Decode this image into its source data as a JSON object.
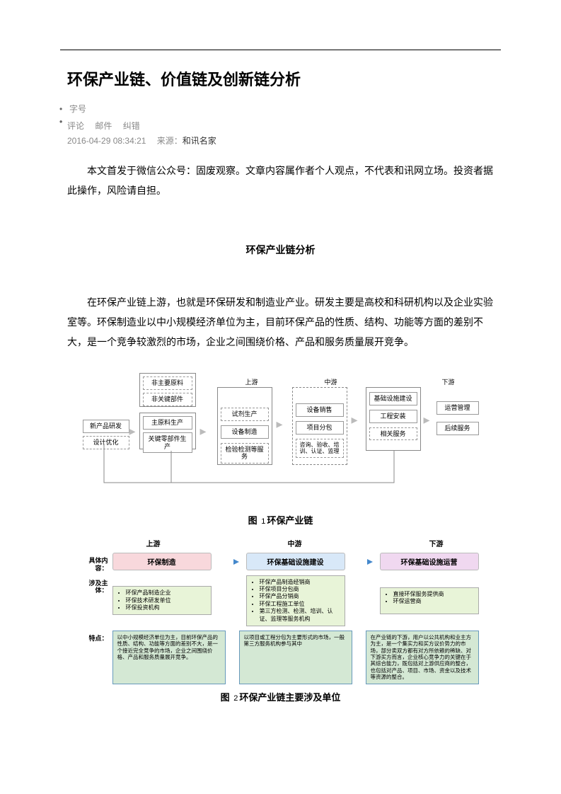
{
  "title": "环保产业链、价值链及创新链分析",
  "meta": {
    "font_label": "字号",
    "links": [
      "评论",
      "邮件",
      "纠错"
    ],
    "timestamp": "2016-04-29 08:34:21",
    "source_label": "来源：",
    "source": "和讯名家"
  },
  "paragraphs": {
    "intro": "本文首发于微信公众号：固废观察。文章内容属作者个人观点，不代表和讯网立场。投资者据此操作，风险请自担。",
    "section_title": "环保产业链分析",
    "body1": "在环保产业链上游，也就是环保研发和制造业产业。研发主要是高校和科研机构以及企业实验室等。环保制造业以中小规模经济单位为主，目前环保产品的性质、结构、功能等方面的差别不大，是一个竞争较激烈的市场，企业之间围绕价格、产品和服务质量展开竞争。"
  },
  "figure1": {
    "caption_prefix": "图",
    "caption_num": "1",
    "caption_text": "环保产业链",
    "stages": {
      "up": "上游",
      "mid": "中游",
      "down": "下游"
    },
    "col1_top": [
      "非主要原料",
      "非关键部件"
    ],
    "col1_mid": [
      "主原料生产",
      "关键零部件生产"
    ],
    "col0": [
      "新产品研发",
      "设计优化"
    ],
    "col2": [
      "试剂生产",
      "设备制造",
      "检验检测等服务"
    ],
    "col3": [
      "设备销售",
      "项目分包",
      "咨询、验收、培训、认证、监理"
    ],
    "col4": [
      "基础设施建设",
      "工程安装",
      "相关服务"
    ],
    "col5": [
      "运营管理",
      "后续服务"
    ]
  },
  "figure2": {
    "caption_prefix": "图",
    "caption_num": "2",
    "caption_text": "环保产业链主要涉及单位",
    "stages": {
      "up": "上游",
      "mid": "中游",
      "down": "下游"
    },
    "row_labels": {
      "content": "具体内容：",
      "subject": "涉及主体：",
      "feature": "特点："
    },
    "headers": {
      "up": "环保制造",
      "mid": "环保基础设施建设",
      "down": "环保基础设施运营"
    },
    "header_colors": {
      "up": "#f8d8dc",
      "mid": "#d8e8f8",
      "down": "#f0d8f0"
    },
    "subjects": {
      "up": [
        "环保产品制造企业",
        "环保技术研发单位",
        "环保投资机构"
      ],
      "mid": [
        "环保产品制造经销商",
        "环保项目分包商",
        "环保产品分销商",
        "环保工程施工单位",
        "第三方检测、检测、培训、认证、监理等服务机构"
      ],
      "down": [
        "直接环保服务提供商",
        "环保运营商"
      ]
    },
    "features": {
      "up": "以中小规模经济单位为主，目前环保产品的性质、结构、功能等方面的差别不大，是一个接近完全竞争的市场，企业之间围绕价格、产品和服务质量展开竞争。",
      "mid": "以项目或工程分包为主要形式的市场，一般第三方服务机构参与其中",
      "down": "在产业链的下游，用户以公共机构和业主方为主，是一个集实力和买方议价势力的市场，部分卖双方都有对方所依赖的稀缺、对下游买方而言，企业核心竞争力的关键在于其综合能力，既包括对上游供应商的整合，也包括对产品、项目、市场、资金以及技术等资源的整合。"
    },
    "arrow_color": "#4488cc"
  }
}
